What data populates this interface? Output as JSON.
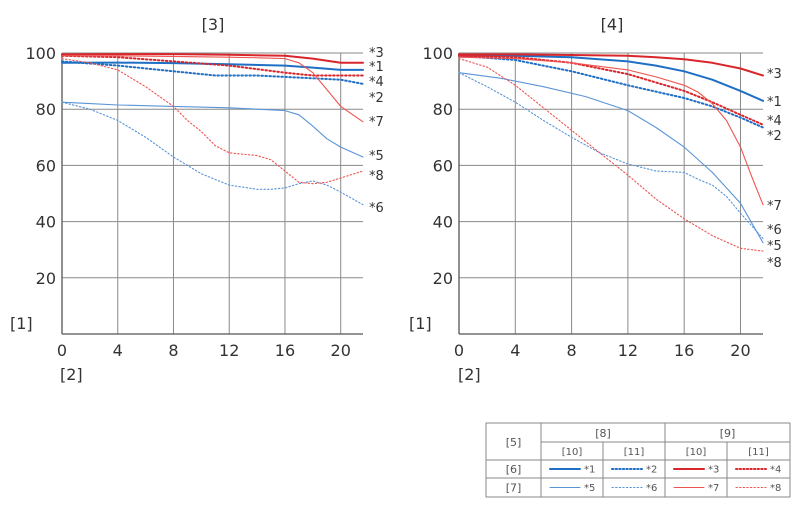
{
  "chart_data": [
    {
      "type": "line",
      "title": "[3]",
      "xlabel": "[2]",
      "ylabel": "[1]",
      "xlim": [
        0,
        21.6
      ],
      "ylim": [
        0,
        100
      ],
      "xticks": [
        "0",
        "4",
        "8",
        "12",
        "16",
        "20"
      ],
      "yticks": [
        "100",
        "80",
        "60",
        "40",
        "20"
      ],
      "grid": true,
      "series": [
        {
          "name": "*1",
          "color": "#1f6fc5",
          "style": "solid",
          "weight": "bold",
          "x": [
            0,
            4,
            8,
            12,
            16,
            18,
            20,
            21.6
          ],
          "y": [
            96.5,
            96.6,
            96.4,
            96.0,
            95.5,
            94.8,
            94.0,
            94.0
          ]
        },
        {
          "name": "*2",
          "color": "#1f6fc5",
          "style": "dotted",
          "weight": "bold",
          "x": [
            0,
            4,
            8,
            11,
            14,
            16,
            18,
            20,
            21.6
          ],
          "y": [
            97.0,
            95.5,
            93.5,
            92.0,
            92.0,
            91.5,
            91.0,
            90.5,
            89.0
          ]
        },
        {
          "name": "*3",
          "color": "#d9262b",
          "style": "solid",
          "weight": "bold",
          "x": [
            0,
            4,
            8,
            12,
            16,
            18,
            20,
            21.6
          ],
          "y": [
            99.5,
            99.6,
            99.6,
            99.4,
            99.0,
            98.0,
            96.5,
            96.5
          ]
        },
        {
          "name": "*4",
          "color": "#d9262b",
          "style": "dotted",
          "weight": "bold",
          "x": [
            0,
            4,
            8,
            12,
            16,
            18,
            20,
            21.6
          ],
          "y": [
            99.0,
            98.5,
            97.0,
            95.5,
            93.0,
            92.0,
            92.0,
            92.0
          ]
        },
        {
          "name": "*5",
          "color": "#5a94d6",
          "style": "solid",
          "weight": "thin",
          "x": [
            0,
            2,
            4,
            8,
            12,
            14,
            16,
            17,
            18,
            19,
            20,
            21.6
          ],
          "y": [
            82.5,
            82.0,
            81.5,
            81.0,
            80.5,
            80.0,
            79.5,
            78.0,
            74.0,
            69.5,
            66.5,
            63.0
          ]
        },
        {
          "name": "*6",
          "color": "#5a94d6",
          "style": "dotted",
          "weight": "thin",
          "x": [
            0,
            2,
            4,
            6,
            8,
            10,
            12,
            14,
            15,
            16,
            17,
            18,
            19,
            20,
            21.6
          ],
          "y": [
            82.5,
            80.0,
            76.0,
            70.0,
            63.0,
            57.0,
            53.0,
            51.5,
            51.5,
            52.0,
            53.5,
            54.5,
            53.0,
            50.5,
            46.0
          ]
        },
        {
          "name": "*7",
          "color": "#ee5450",
          "style": "solid",
          "weight": "thin",
          "x": [
            0,
            4,
            8,
            12,
            14,
            16,
            17,
            18,
            19,
            20,
            21.6
          ],
          "y": [
            99.0,
            99.0,
            98.8,
            98.5,
            98.3,
            98.0,
            96.5,
            93.0,
            87.0,
            81.0,
            75.5
          ]
        },
        {
          "name": "*8",
          "color": "#ee5450",
          "style": "dotted",
          "weight": "thin",
          "x": [
            0,
            2,
            4,
            6,
            8,
            9,
            10,
            11,
            12,
            13,
            14,
            15,
            16,
            17,
            18,
            19,
            20,
            21.6
          ],
          "y": [
            98.0,
            96.5,
            94.0,
            88.0,
            81.0,
            76.0,
            72.0,
            67.0,
            64.5,
            64.0,
            63.5,
            62.0,
            58.0,
            54.0,
            53.5,
            54.0,
            55.5,
            58.0
          ]
        }
      ]
    },
    {
      "type": "line",
      "title": "[4]",
      "xlabel": "[2]",
      "ylabel": "[1]",
      "xlim": [
        0,
        21.6
      ],
      "ylim": [
        0,
        100
      ],
      "xticks": [
        "0",
        "4",
        "8",
        "12",
        "16",
        "20"
      ],
      "yticks": [
        "100",
        "80",
        "60",
        "40",
        "20"
      ],
      "grid": true,
      "series": [
        {
          "name": "*1",
          "color": "#1f6fc5",
          "style": "solid",
          "weight": "bold",
          "x": [
            0,
            4,
            8,
            12,
            14,
            16,
            18,
            20,
            21.6
          ],
          "y": [
            99.0,
            99.0,
            98.5,
            97.0,
            95.5,
            93.5,
            90.5,
            86.5,
            83.0
          ]
        },
        {
          "name": "*2",
          "color": "#1f6fc5",
          "style": "dotted",
          "weight": "bold",
          "x": [
            0,
            4,
            8,
            12,
            16,
            18,
            20,
            21.6
          ],
          "y": [
            99.0,
            97.5,
            93.5,
            88.5,
            84.0,
            81.0,
            77.0,
            73.5
          ]
        },
        {
          "name": "*3",
          "color": "#d9262b",
          "style": "solid",
          "weight": "bold",
          "x": [
            0,
            4,
            8,
            12,
            14,
            16,
            18,
            20,
            21.6
          ],
          "y": [
            99.5,
            99.5,
            99.3,
            99.0,
            98.5,
            97.8,
            96.5,
            94.5,
            92.0
          ]
        },
        {
          "name": "*4",
          "color": "#d9262b",
          "style": "dotted",
          "weight": "bold",
          "x": [
            0,
            4,
            8,
            12,
            16,
            18,
            20,
            21.6
          ],
          "y": [
            99.0,
            98.5,
            96.5,
            92.5,
            86.5,
            82.5,
            78.0,
            74.5
          ]
        },
        {
          "name": "*5",
          "color": "#5a94d6",
          "style": "solid",
          "weight": "thin",
          "x": [
            0,
            3,
            6,
            9,
            12,
            14,
            16,
            18,
            20,
            21.6
          ],
          "y": [
            93.0,
            91.0,
            88.0,
            84.5,
            79.5,
            73.5,
            66.5,
            57.5,
            46.5,
            32.5
          ]
        },
        {
          "name": "*6",
          "color": "#5a94d6",
          "style": "dotted",
          "weight": "thin",
          "x": [
            0,
            2,
            4,
            6,
            8,
            10,
            12,
            14,
            16,
            17,
            18,
            19,
            20,
            21.6
          ],
          "y": [
            93.0,
            88.0,
            82.5,
            76.0,
            70.0,
            64.5,
            60.5,
            58.0,
            57.5,
            55.0,
            53.0,
            49.0,
            43.0,
            34.0
          ]
        },
        {
          "name": "*7",
          "color": "#ee5450",
          "style": "solid",
          "weight": "thin",
          "x": [
            0,
            4,
            8,
            12,
            14,
            16,
            17,
            18,
            19,
            20,
            20.8,
            21.6
          ],
          "y": [
            98.5,
            98.0,
            96.5,
            94.0,
            91.5,
            88.5,
            86.0,
            82.0,
            76.0,
            66.5,
            56.0,
            46.0
          ]
        },
        {
          "name": "*8",
          "color": "#ee5450",
          "style": "dotted",
          "weight": "thin",
          "x": [
            0,
            2,
            4,
            6,
            8,
            10,
            12,
            14,
            16,
            18,
            20,
            21.6
          ],
          "y": [
            98.0,
            95.0,
            88.5,
            80.5,
            72.5,
            64.5,
            56.5,
            48.0,
            41.0,
            35.0,
            30.5,
            29.5
          ]
        }
      ]
    }
  ],
  "legend": {
    "corner": "[5]",
    "groups": [
      "[8]",
      "[9]"
    ],
    "subheads": [
      "[10]",
      "[11]",
      "[10]",
      "[11]"
    ],
    "rows": [
      {
        "label": "[6]",
        "entries": [
          "*1",
          "*2",
          "*3",
          "*4"
        ]
      },
      {
        "label": "[7]",
        "entries": [
          "*5",
          "*6",
          "*7",
          "*8"
        ]
      }
    ]
  }
}
